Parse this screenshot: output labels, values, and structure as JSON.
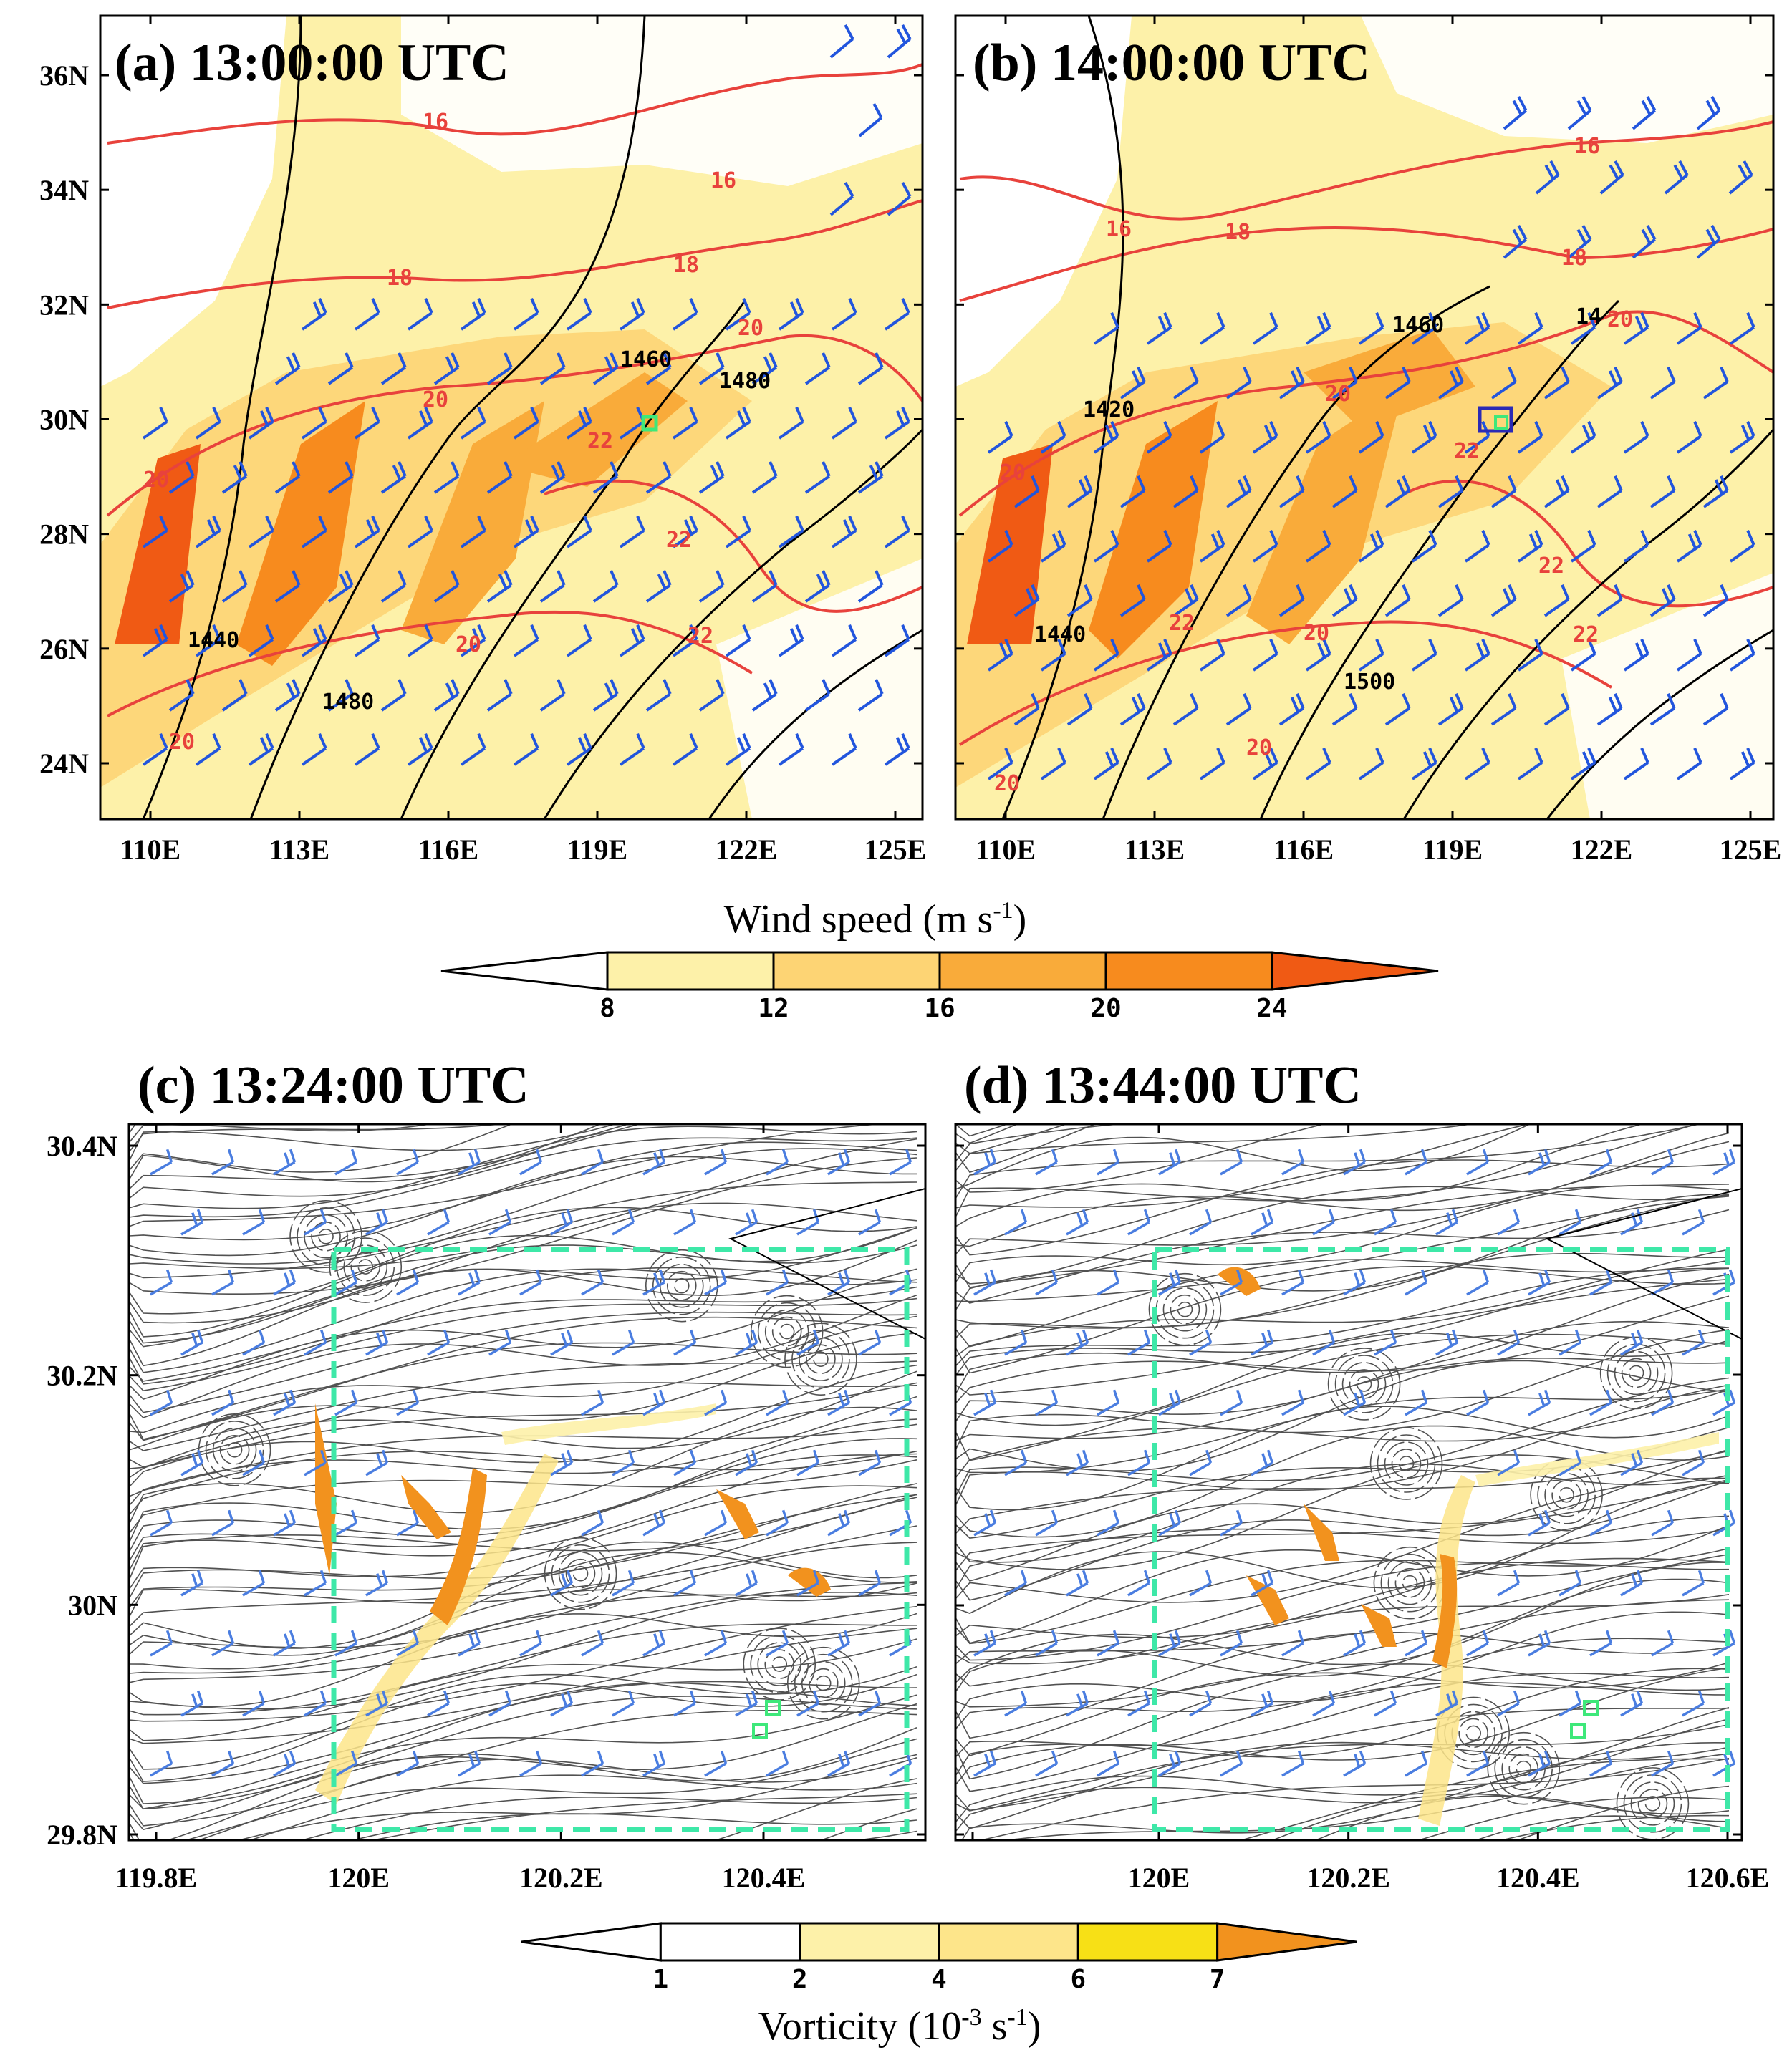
{
  "panels": [
    {
      "id": "a",
      "title": "(a) 13:00:00 UTC",
      "type": "wind-map",
      "lat_ticks": [
        "36N",
        "34N",
        "32N",
        "30N",
        "28N",
        "26N",
        "24N"
      ],
      "lon_ticks": [
        "110E",
        "113E",
        "116E",
        "119E",
        "122E",
        "125E"
      ],
      "red_contour_labels": [
        "16",
        "16",
        "18",
        "18",
        "20",
        "20",
        "22",
        "22",
        "22",
        "20",
        "20",
        "20"
      ],
      "black_contour_labels": [
        "1460",
        "1480",
        "1440",
        "1480"
      ]
    },
    {
      "id": "b",
      "title": "(b) 14:00:00 UTC",
      "type": "wind-map",
      "lat_ticks": [
        "36N",
        "34N",
        "32N",
        "30N",
        "28N",
        "26N",
        "24N"
      ],
      "lon_ticks": [
        "110E",
        "113E",
        "116E",
        "119E",
        "122E",
        "125E"
      ],
      "red_contour_labels": [
        "16",
        "16",
        "18",
        "18",
        "20",
        "20",
        "20",
        "22",
        "22",
        "22",
        "22",
        "20",
        "20",
        "20"
      ],
      "black_contour_labels": [
        "1460",
        "14",
        "1420",
        "1440",
        "1500"
      ]
    },
    {
      "id": "c",
      "title": "(c) 13:24:00 UTC",
      "type": "streamline-map",
      "lat_ticks": [
        "30.4N",
        "30.2N",
        "30N",
        "29.8N"
      ],
      "lon_ticks": [
        "119.8E",
        "120E",
        "120.2E",
        "120.4E"
      ]
    },
    {
      "id": "d",
      "title": "(d) 13:44:00 UTC",
      "type": "streamline-map",
      "lat_ticks": [
        "30.4N",
        "30.2N",
        "30N",
        "29.8N"
      ],
      "lon_ticks": [
        "120E",
        "120.2E",
        "120.4E",
        "120.6E"
      ]
    }
  ],
  "colorbars": {
    "wind": {
      "title": "Wind speed (m s",
      "title_sup": "-1",
      "title_end": ")",
      "ticks": [
        "8",
        "12",
        "16",
        "20",
        "24"
      ],
      "colors": [
        "#ffffff",
        "#fdf1a9",
        "#fdd474",
        "#f9ab3a",
        "#f78b1e",
        "#f05a14"
      ]
    },
    "vorticity": {
      "title": "Vorticity (10",
      "title_sup": "-3",
      "title_mid": " s",
      "title_sup2": "-1",
      "title_end": ")",
      "ticks": [
        "1",
        "2",
        "4",
        "6",
        "7"
      ],
      "colors": [
        "#ffffff",
        "#ffffff",
        "#fdf1a9",
        "#fde58a",
        "#f7e016",
        "#f2921e"
      ]
    }
  },
  "colors": {
    "wind_barb": "#2255dd",
    "red_contour": "#e8423c",
    "black_contour": "#000000",
    "box_green": "#3ee87a",
    "box_blue": "#2a2ab5",
    "dashed_box": "#3ee8a8"
  }
}
